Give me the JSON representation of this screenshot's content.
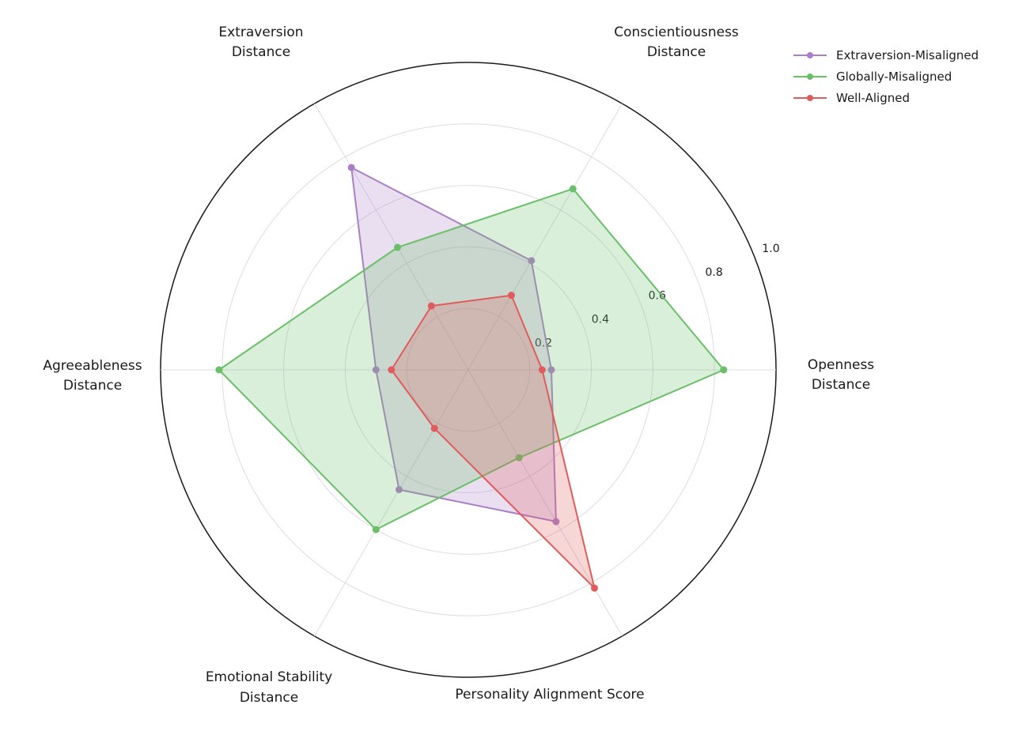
{
  "figure": {
    "background": "#ffffff",
    "text_color": "#1a1a1a",
    "grid_color": "#dcdce4",
    "outline_color": "#1a1a1a"
  },
  "chart_data": {
    "type": "radar",
    "title": "",
    "axes": [
      {
        "id": "openness",
        "label_lines": [
          "Openness",
          "Distance"
        ],
        "angle_deg": 0
      },
      {
        "id": "conscientiousness",
        "label_lines": [
          "Conscientiousness",
          "Distance"
        ],
        "angle_deg": 60
      },
      {
        "id": "extraversion",
        "label_lines": [
          "Extraversion",
          "Distance"
        ],
        "angle_deg": 120
      },
      {
        "id": "agreeableness",
        "label_lines": [
          "Agreeableness",
          "Distance"
        ],
        "angle_deg": 180
      },
      {
        "id": "emotional-stability",
        "label_lines": [
          "Emotional Stability",
          "Distance"
        ],
        "angle_deg": 240
      },
      {
        "id": "personality-alignment",
        "label_lines": [
          "Personality Alignment Score"
        ],
        "angle_deg": 300
      }
    ],
    "rlim": [
      0,
      1.0
    ],
    "radial_ticks": [
      0.2,
      0.4,
      0.6,
      0.8,
      1.0
    ],
    "radial_tick_labels": [
      "0.2",
      "0.4",
      "0.6",
      "0.8",
      "1.0"
    ],
    "grid": true,
    "legend_position": "upper right",
    "series": [
      {
        "name": "Extraversion-Misaligned",
        "color": "#ab7fc4",
        "fill_opacity": 0.25,
        "values": [
          0.27,
          0.41,
          0.76,
          0.3,
          0.45,
          0.57
        ]
      },
      {
        "name": "Globally-Misaligned",
        "color": "#6abf69",
        "fill_opacity": 0.25,
        "values": [
          0.83,
          0.68,
          0.46,
          0.81,
          0.6,
          0.33
        ]
      },
      {
        "name": "Well-Aligned",
        "color": "#e05c5c",
        "fill_opacity": 0.25,
        "values": [
          0.24,
          0.28,
          0.24,
          0.25,
          0.22,
          0.82
        ]
      }
    ]
  }
}
